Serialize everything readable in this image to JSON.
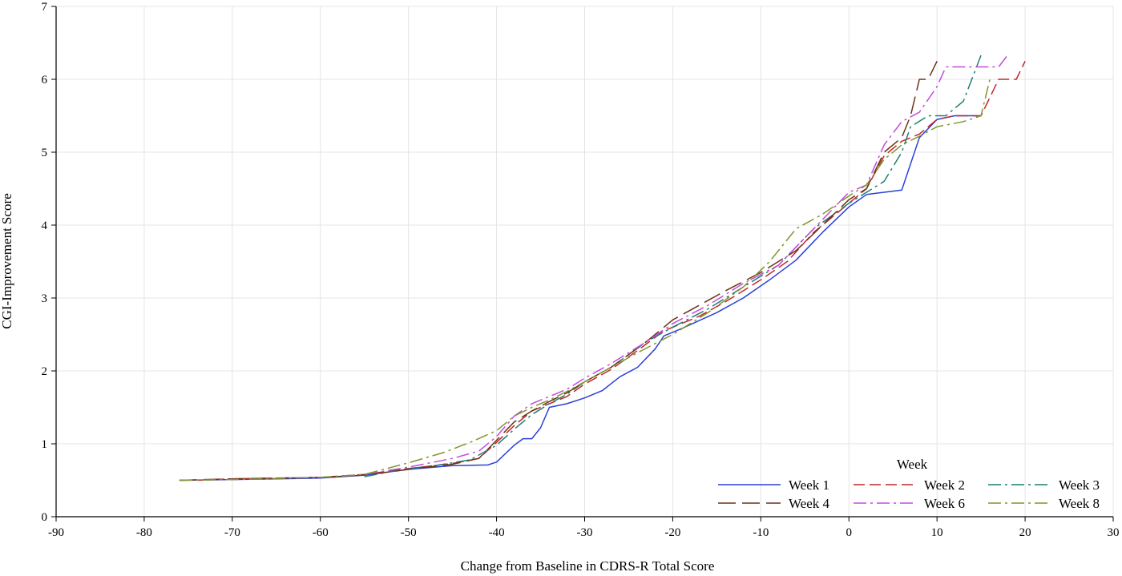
{
  "chart_data": {
    "type": "line",
    "title": "",
    "xlabel": "Change from Baseline in CDRS-R Total Score",
    "ylabel": "CGI-Improvement Score",
    "xlim": [
      -90,
      30
    ],
    "ylim": [
      0,
      7
    ],
    "xticks": [
      -90,
      -80,
      -70,
      -60,
      -50,
      -40,
      -30,
      -20,
      -10,
      0,
      10,
      20,
      30
    ],
    "yticks": [
      0,
      1,
      2,
      3,
      4,
      5,
      6,
      7
    ],
    "grid": true,
    "legend": {
      "title": "Week",
      "position": "bottom-right"
    },
    "series": [
      {
        "name": "Week 1",
        "color": "#2b3fd9",
        "dash": "solid",
        "points": [
          [
            -76,
            0.5
          ],
          [
            -70,
            0.51
          ],
          [
            -60,
            0.53
          ],
          [
            -55,
            0.57
          ],
          [
            -50,
            0.65
          ],
          [
            -45,
            0.7
          ],
          [
            -41,
            0.71
          ],
          [
            -40,
            0.75
          ],
          [
            -38,
            0.98
          ],
          [
            -37,
            1.07
          ],
          [
            -36,
            1.07
          ],
          [
            -35,
            1.22
          ],
          [
            -34,
            1.5
          ],
          [
            -32,
            1.55
          ],
          [
            -30,
            1.63
          ],
          [
            -28,
            1.73
          ],
          [
            -26,
            1.92
          ],
          [
            -24,
            2.05
          ],
          [
            -22,
            2.3
          ],
          [
            -21,
            2.48
          ],
          [
            -19,
            2.58
          ],
          [
            -15,
            2.8
          ],
          [
            -12,
            3.0
          ],
          [
            -9,
            3.25
          ],
          [
            -6,
            3.52
          ],
          [
            -3,
            3.9
          ],
          [
            0,
            4.25
          ],
          [
            2,
            4.42
          ],
          [
            4,
            4.45
          ],
          [
            6,
            4.48
          ],
          [
            8,
            5.2
          ],
          [
            10,
            5.45
          ],
          [
            12,
            5.5
          ],
          [
            15,
            5.5
          ]
        ]
      },
      {
        "name": "Week 2",
        "color": "#c1272d",
        "dash": "dash",
        "points": [
          [
            -74,
            0.5
          ],
          [
            -70,
            0.52
          ],
          [
            -60,
            0.54
          ],
          [
            -55,
            0.58
          ],
          [
            -50,
            0.66
          ],
          [
            -45,
            0.73
          ],
          [
            -42,
            0.8
          ],
          [
            -40,
            1.02
          ],
          [
            -38,
            1.25
          ],
          [
            -36,
            1.45
          ],
          [
            -34,
            1.55
          ],
          [
            -32,
            1.65
          ],
          [
            -30,
            1.82
          ],
          [
            -27,
            2.02
          ],
          [
            -24,
            2.28
          ],
          [
            -21,
            2.55
          ],
          [
            -17,
            2.75
          ],
          [
            -14,
            2.95
          ],
          [
            -10,
            3.25
          ],
          [
            -7,
            3.5
          ],
          [
            -4,
            3.9
          ],
          [
            0,
            4.3
          ],
          [
            2,
            4.5
          ],
          [
            4,
            4.95
          ],
          [
            6,
            5.15
          ],
          [
            8,
            5.25
          ],
          [
            10,
            5.45
          ],
          [
            12,
            5.5
          ],
          [
            15,
            5.5
          ],
          [
            17,
            6.0
          ],
          [
            19,
            6.0
          ],
          [
            20,
            6.25
          ]
        ]
      },
      {
        "name": "Week 3",
        "color": "#1e7f72",
        "dash": "dashdot",
        "points": [
          [
            -55,
            0.55
          ],
          [
            -52,
            0.62
          ],
          [
            -50,
            0.66
          ],
          [
            -47,
            0.7
          ],
          [
            -43,
            0.78
          ],
          [
            -40,
            0.98
          ],
          [
            -38,
            1.2
          ],
          [
            -36,
            1.4
          ],
          [
            -34,
            1.55
          ],
          [
            -32,
            1.68
          ],
          [
            -30,
            1.85
          ],
          [
            -27,
            2.05
          ],
          [
            -23,
            2.4
          ],
          [
            -20,
            2.6
          ],
          [
            -16,
            2.85
          ],
          [
            -12,
            3.15
          ],
          [
            -8,
            3.45
          ],
          [
            -4,
            3.95
          ],
          [
            0,
            4.3
          ],
          [
            2,
            4.45
          ],
          [
            4,
            4.6
          ],
          [
            6,
            5.0
          ],
          [
            7,
            5.35
          ],
          [
            9,
            5.5
          ],
          [
            11,
            5.5
          ],
          [
            13,
            5.7
          ],
          [
            15,
            6.33
          ]
        ]
      },
      {
        "name": "Week 4",
        "color": "#6b3416",
        "dash": "longdash",
        "points": [
          [
            -76,
            0.5
          ],
          [
            -70,
            0.52
          ],
          [
            -60,
            0.54
          ],
          [
            -55,
            0.57
          ],
          [
            -50,
            0.65
          ],
          [
            -45,
            0.72
          ],
          [
            -42,
            0.8
          ],
          [
            -40,
            1.05
          ],
          [
            -38,
            1.3
          ],
          [
            -36,
            1.45
          ],
          [
            -34,
            1.58
          ],
          [
            -32,
            1.7
          ],
          [
            -30,
            1.85
          ],
          [
            -27,
            2.05
          ],
          [
            -23,
            2.4
          ],
          [
            -20,
            2.7
          ],
          [
            -17,
            2.9
          ],
          [
            -14,
            3.1
          ],
          [
            -10,
            3.35
          ],
          [
            -6,
            3.65
          ],
          [
            -3,
            4.0
          ],
          [
            0,
            4.35
          ],
          [
            2,
            4.5
          ],
          [
            4,
            5.0
          ],
          [
            6,
            5.2
          ],
          [
            7,
            5.5
          ],
          [
            8,
            6.0
          ],
          [
            9,
            6.0
          ],
          [
            10,
            6.25
          ]
        ]
      },
      {
        "name": "Week 6",
        "color": "#c54ae0",
        "dash": "dashdot",
        "points": [
          [
            -76,
            0.5
          ],
          [
            -70,
            0.51
          ],
          [
            -60,
            0.54
          ],
          [
            -55,
            0.58
          ],
          [
            -50,
            0.68
          ],
          [
            -45,
            0.8
          ],
          [
            -42,
            0.9
          ],
          [
            -40,
            1.1
          ],
          [
            -38,
            1.38
          ],
          [
            -36,
            1.55
          ],
          [
            -34,
            1.65
          ],
          [
            -32,
            1.75
          ],
          [
            -30,
            1.9
          ],
          [
            -27,
            2.1
          ],
          [
            -23,
            2.4
          ],
          [
            -20,
            2.65
          ],
          [
            -16,
            2.9
          ],
          [
            -12,
            3.2
          ],
          [
            -8,
            3.45
          ],
          [
            -4,
            3.95
          ],
          [
            0,
            4.45
          ],
          [
            2,
            4.55
          ],
          [
            4,
            5.1
          ],
          [
            6,
            5.42
          ],
          [
            8,
            5.55
          ],
          [
            10,
            5.9
          ],
          [
            11,
            6.17
          ],
          [
            15,
            6.17
          ],
          [
            17,
            6.17
          ],
          [
            18,
            6.33
          ]
        ]
      },
      {
        "name": "Week 8",
        "color": "#7e962b",
        "dash": "dashdot",
        "points": [
          [
            -76,
            0.5
          ],
          [
            -70,
            0.51
          ],
          [
            -60,
            0.54
          ],
          [
            -55,
            0.58
          ],
          [
            -50,
            0.74
          ],
          [
            -46,
            0.88
          ],
          [
            -43,
            1.02
          ],
          [
            -40,
            1.18
          ],
          [
            -38,
            1.38
          ],
          [
            -36,
            1.5
          ],
          [
            -34,
            1.6
          ],
          [
            -32,
            1.72
          ],
          [
            -30,
            1.85
          ],
          [
            -27,
            2.05
          ],
          [
            -24,
            2.25
          ],
          [
            -20,
            2.5
          ],
          [
            -16,
            2.8
          ],
          [
            -12,
            3.15
          ],
          [
            -9,
            3.5
          ],
          [
            -6,
            3.95
          ],
          [
            -3,
            4.15
          ],
          [
            0,
            4.4
          ],
          [
            2,
            4.55
          ],
          [
            4,
            4.9
          ],
          [
            6,
            5.1
          ],
          [
            8,
            5.22
          ],
          [
            10,
            5.35
          ],
          [
            13,
            5.42
          ],
          [
            15,
            5.5
          ],
          [
            16,
            6.0
          ]
        ]
      }
    ]
  }
}
